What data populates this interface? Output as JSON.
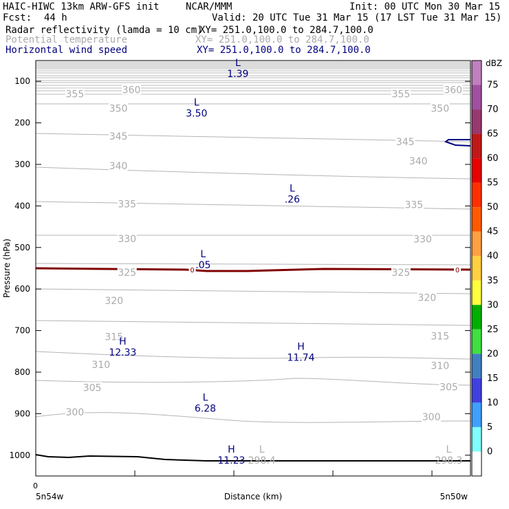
{
  "header": {
    "model": "HAIC-HIWC 13km ARW-GFS init",
    "org": "NCAR/MMM",
    "init": "Init: 00 UTC Mon 30 Mar 15",
    "fcst_label": "Fcst:",
    "fcst_value": "44 h",
    "valid": "Valid: 20 UTC Tue 31 Mar 15 (17 LST Tue 31 Mar 15)"
  },
  "fields": [
    {
      "name": "Radar reflectivity (lamda = 10 cm)",
      "xy": "XY= 251.0,100.0 to 284.7,100.0",
      "color": "#000000"
    },
    {
      "name": "Potential temperature",
      "xy": "XY= 251.0,100.0 to 284.7,100.0",
      "color": "#aaaaaa"
    },
    {
      "name": "Horizontal wind speed",
      "xy": "XY= 251.0,100.0 to 284.7,100.0",
      "color": "#000080"
    }
  ],
  "chart_data": {
    "type": "contour-cross-section",
    "ylabel": "Pressure (hPa)",
    "xlabel": "Distance (km)",
    "x_tick_labels": [
      "0"
    ],
    "x_left_label": "5n54w",
    "x_right_label": "5n50w",
    "y_ticks": [
      100,
      200,
      300,
      400,
      500,
      600,
      700,
      800,
      900,
      1000
    ],
    "ylim": [
      1050,
      50
    ],
    "theta_labels": [
      {
        "text": "360",
        "x": 0.22,
        "p": 120
      },
      {
        "text": "355",
        "x": 0.09,
        "p": 130
      },
      {
        "text": "360",
        "x": 0.96,
        "p": 120
      },
      {
        "text": "355",
        "x": 0.84,
        "p": 130
      },
      {
        "text": "350",
        "x": 0.19,
        "p": 165
      },
      {
        "text": "350",
        "x": 0.93,
        "p": 165
      },
      {
        "text": "345",
        "x": 0.19,
        "p": 232
      },
      {
        "text": "345",
        "x": 0.85,
        "p": 245
      },
      {
        "text": "340",
        "x": 0.19,
        "p": 303
      },
      {
        "text": "340",
        "x": 0.88,
        "p": 292
      },
      {
        "text": "335",
        "x": 0.21,
        "p": 395
      },
      {
        "text": "335",
        "x": 0.87,
        "p": 397
      },
      {
        "text": "330",
        "x": 0.21,
        "p": 479
      },
      {
        "text": "330",
        "x": 0.89,
        "p": 480
      },
      {
        "text": "325",
        "x": 0.21,
        "p": 560
      },
      {
        "text": "325",
        "x": 0.84,
        "p": 560
      },
      {
        "text": "320",
        "x": 0.18,
        "p": 628
      },
      {
        "text": "320",
        "x": 0.9,
        "p": 620
      },
      {
        "text": "315",
        "x": 0.18,
        "p": 715
      },
      {
        "text": "315",
        "x": 0.93,
        "p": 713
      },
      {
        "text": "310",
        "x": 0.15,
        "p": 782
      },
      {
        "text": "310",
        "x": 0.93,
        "p": 784
      },
      {
        "text": "305",
        "x": 0.13,
        "p": 837
      },
      {
        "text": "305",
        "x": 0.95,
        "p": 836
      },
      {
        "text": "300",
        "x": 0.09,
        "p": 896
      },
      {
        "text": "300",
        "x": 0.91,
        "p": 908
      }
    ],
    "wind_extrema": [
      {
        "kind": "L",
        "value": "1.39",
        "x": 0.465,
        "p": 70
      },
      {
        "kind": "L",
        "value": "3.50",
        "x": 0.37,
        "p": 165
      },
      {
        "kind": "L",
        "value": ".26",
        "x": 0.59,
        "p": 372
      },
      {
        "kind": "L",
        "value": ".05",
        "x": 0.385,
        "p": 530
      },
      {
        "kind": "H",
        "value": "12.33",
        "x": 0.2,
        "p": 740
      },
      {
        "kind": "H",
        "value": "11.74",
        "x": 0.61,
        "p": 753
      },
      {
        "kind": "L",
        "value": "6.28",
        "x": 0.39,
        "p": 875
      },
      {
        "kind": "H",
        "value": "11.23",
        "x": 0.45,
        "p": 1000
      }
    ],
    "theta_extrema": [
      {
        "kind": "L",
        "value": "298.4",
        "x": 0.52,
        "p": 1000
      },
      {
        "kind": "L",
        "value": "298.3",
        "x": 0.95,
        "p": 1000
      }
    ],
    "reflectivity_zero_labels": [
      {
        "text": "0",
        "x": 0.36,
        "p": 553
      },
      {
        "text": "0",
        "x": 0.97,
        "p": 553
      }
    ],
    "colorbar": {
      "unit": "dBZ",
      "labels": [
        "75",
        "70",
        "65",
        "60",
        "55",
        "50",
        "45",
        "40",
        "35",
        "30",
        "25",
        "20",
        "15",
        "10",
        "5",
        "0"
      ],
      "colors": [
        "#c080c0",
        "#a050a0",
        "#983870",
        "#c01818",
        "#e80000",
        "#ff3000",
        "#ff5a00",
        "#ffa040",
        "#ffd040",
        "#ffff40",
        "#00b000",
        "#40e040",
        "#4080c0",
        "#4040e0",
        "#40a0ff",
        "#80ffff",
        "#ffffff"
      ]
    }
  }
}
